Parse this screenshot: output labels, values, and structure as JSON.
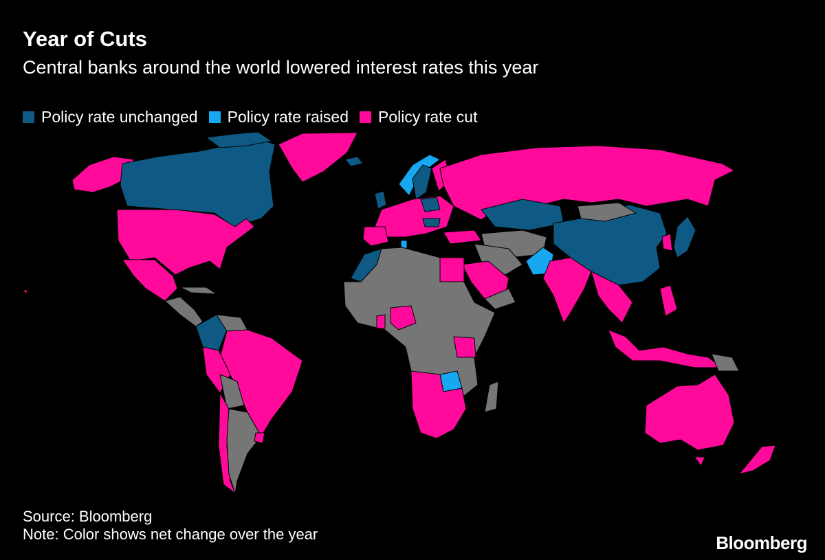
{
  "title": "Year of Cuts",
  "subtitle": "Central banks around the world lowered interest rates this year",
  "legend": [
    {
      "label": "Policy rate unchanged",
      "color": "#0f5a85"
    },
    {
      "label": "Policy rate raised",
      "color": "#18a8f2"
    },
    {
      "label": "Policy rate cut",
      "color": "#ff0a9b"
    }
  ],
  "no_data_color": "#767676",
  "source": "Source: Bloomberg",
  "note": "Note: Color shows net change over the year",
  "brand": "Bloomberg"
}
